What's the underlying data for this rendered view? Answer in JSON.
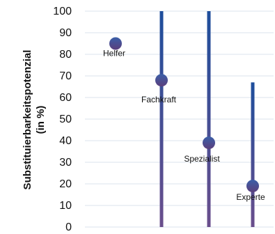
{
  "chart_data": {
    "type": "scatter",
    "ylabel_line1": "Substituierbarkeitspotenzial",
    "ylabel_line2": "(in %)",
    "ylim": [
      0,
      100
    ],
    "yticks": [
      "0",
      "10",
      "20",
      "30",
      "40",
      "50",
      "60",
      "70",
      "80",
      "90",
      "100"
    ],
    "grid": true,
    "points": [
      {
        "label": "Helfer",
        "value": 85,
        "range_top": null
      },
      {
        "label": "Fachkraft",
        "value": 68,
        "range_top": 100
      },
      {
        "label": "Spezialist",
        "value": 39,
        "range_top": 100
      },
      {
        "label": "Experte",
        "value": 19,
        "range_top": 67
      }
    ],
    "colors": {
      "marker_top": "#3b5fa8",
      "marker_bottom": "#5b3f7c",
      "bar_top": "#1e4e9c",
      "bar_bottom": "#6a4e8c"
    }
  }
}
